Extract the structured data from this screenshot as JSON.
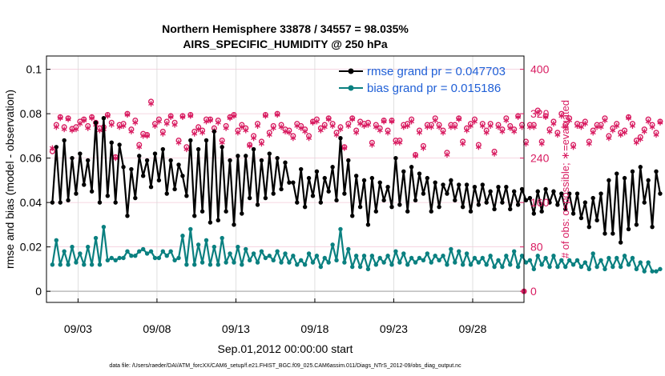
{
  "colors": {
    "rmse": "#000000",
    "bias": "#0a8080",
    "obs": "#d81b60",
    "grid": "#d8d8d8",
    "zero": "#bbbbbb",
    "legend_text": "#1f5fd6"
  },
  "chart_data": {
    "type": "line",
    "title_line1": "Northern Hemisphere 33878 / 34557 = 98.035%",
    "title_line2": "AIRS_SPECIFIC_HUMIDITY @ 250 hPa",
    "xlabel": "Sep.01,2012 00:00:00 start",
    "ylabel": "rmse and bias (model - observation)",
    "y2label": "# of obs: o=possible; ∗=evaluated",
    "footnote": "data file: /Users/raeder/DAI/ATM_forcXX/CAM6_setup/f.e21.FHIST_BGC.f09_025.CAM6assim.011/Diags_NTrS_2012-09/obs_diag_output.nc",
    "xlim": [
      1.0,
      31.25
    ],
    "ylim": [
      -0.005,
      0.106
    ],
    "y2lim": [
      -20,
      424
    ],
    "x_ticks": [
      3,
      8,
      13,
      18,
      23,
      28
    ],
    "x_tick_labels": [
      "09/03",
      "09/08",
      "09/13",
      "09/18",
      "09/23",
      "09/28"
    ],
    "y_ticks": [
      0,
      0.02,
      0.04,
      0.06,
      0.08,
      0.1
    ],
    "y_tick_labels": [
      "0",
      "0.02",
      "0.04",
      "0.06",
      "0.08",
      "0.1"
    ],
    "y2_ticks": [
      0,
      80,
      160,
      240,
      320,
      400
    ],
    "y2_tick_labels": [
      "0",
      "80",
      "160",
      "240",
      "320",
      "400"
    ],
    "legend": [
      "rmse grand pr = 0.047703",
      "bias grand pr = 0.015186"
    ],
    "x_start": 1.375,
    "x_step": 0.25,
    "series": [
      {
        "name": "rmse",
        "values": [
          0.04,
          0.065,
          0.04,
          0.068,
          0.041,
          0.06,
          0.044,
          0.062,
          0.048,
          0.059,
          0.045,
          0.076,
          0.04,
          0.078,
          0.043,
          0.067,
          0.04,
          0.066,
          0.056,
          0.034,
          0.055,
          0.042,
          0.061,
          0.052,
          0.059,
          0.047,
          0.062,
          0.05,
          0.064,
          0.044,
          0.059,
          0.046,
          0.057,
          0.052,
          0.043,
          0.068,
          0.034,
          0.064,
          0.036,
          0.068,
          0.031,
          0.072,
          0.032,
          0.065,
          0.036,
          0.059,
          0.03,
          0.061,
          0.035,
          0.061,
          0.042,
          0.064,
          0.039,
          0.059,
          0.042,
          0.062,
          0.044,
          0.06,
          0.046,
          0.058,
          0.049,
          0.049,
          0.04,
          0.055,
          0.038,
          0.051,
          0.043,
          0.054,
          0.04,
          0.051,
          0.045,
          0.056,
          0.041,
          0.069,
          0.044,
          0.059,
          0.034,
          0.052,
          0.038,
          0.05,
          0.03,
          0.051,
          0.036,
          0.049,
          0.041,
          0.047,
          0.038,
          0.06,
          0.039,
          0.054,
          0.036,
          0.056,
          0.041,
          0.053,
          0.044,
          0.051,
          0.036,
          0.049,
          0.038,
          0.048,
          0.044,
          0.05,
          0.041,
          0.048,
          0.038,
          0.048,
          0.036,
          0.047,
          0.039,
          0.048,
          0.04,
          0.045,
          0.037,
          0.047,
          0.04,
          0.047,
          0.037,
          0.045,
          0.039,
          0.046,
          0.041,
          0.042,
          0.035,
          0.045,
          0.036,
          0.046,
          0.04,
          0.045,
          0.039,
          0.044,
          0.037,
          0.044,
          0.035,
          0.044,
          0.033,
          0.04,
          0.029,
          0.042,
          0.032,
          0.044,
          0.026,
          0.05,
          0.026,
          0.053,
          0.022,
          0.051,
          0.028,
          0.054,
          0.03,
          0.056,
          0.04,
          0.05,
          0.029,
          0.054,
          0.044
        ]
      },
      {
        "name": "bias",
        "values": [
          0.012,
          0.023,
          0.012,
          0.018,
          0.012,
          0.02,
          0.013,
          0.017,
          0.012,
          0.02,
          0.012,
          0.024,
          0.012,
          0.029,
          0.014,
          0.015,
          0.014,
          0.015,
          0.015,
          0.018,
          0.016,
          0.016,
          0.018,
          0.019,
          0.017,
          0.018,
          0.015,
          0.015,
          0.018,
          0.016,
          0.018,
          0.014,
          0.015,
          0.025,
          0.012,
          0.028,
          0.012,
          0.021,
          0.013,
          0.023,
          0.012,
          0.02,
          0.012,
          0.024,
          0.013,
          0.017,
          0.013,
          0.02,
          0.012,
          0.019,
          0.014,
          0.017,
          0.013,
          0.018,
          0.015,
          0.016,
          0.014,
          0.018,
          0.013,
          0.017,
          0.013,
          0.016,
          0.012,
          0.014,
          0.012,
          0.017,
          0.013,
          0.016,
          0.011,
          0.015,
          0.013,
          0.021,
          0.014,
          0.028,
          0.013,
          0.019,
          0.011,
          0.016,
          0.011,
          0.016,
          0.01,
          0.016,
          0.012,
          0.015,
          0.013,
          0.016,
          0.012,
          0.018,
          0.013,
          0.017,
          0.012,
          0.015,
          0.013,
          0.015,
          0.014,
          0.017,
          0.013,
          0.016,
          0.014,
          0.016,
          0.012,
          0.019,
          0.013,
          0.018,
          0.012,
          0.017,
          0.012,
          0.015,
          0.013,
          0.015,
          0.012,
          0.016,
          0.011,
          0.014,
          0.011,
          0.016,
          0.012,
          0.018,
          0.011,
          0.016,
          0.013,
          0.014,
          0.01,
          0.016,
          0.012,
          0.015,
          0.011,
          0.016,
          0.011,
          0.014,
          0.011,
          0.014,
          0.012,
          0.014,
          0.011,
          0.013,
          0.01,
          0.017,
          0.011,
          0.014,
          0.01,
          0.015,
          0.011,
          0.015,
          0.011,
          0.016,
          0.012,
          0.015,
          0.01,
          0.013,
          0.009,
          0.013,
          0.009,
          0.009,
          0.01
        ]
      },
      {
        "name": "obs_possible",
        "values": [
          252,
          300,
          314,
          296,
          312,
          293,
          296,
          306,
          310,
          298,
          314,
          304,
          294,
          296,
          318,
          304,
          242,
          300,
          302,
          320,
          292,
          308,
          264,
          284,
          282,
          342,
          302,
          310,
          288,
          306,
          316,
          304,
          272,
          316,
          260,
          318,
          288,
          296,
          290,
          310,
          310,
          294,
          308,
          272,
          298,
          314,
          318,
          290,
          300,
          294,
          264,
          280,
          302,
          270,
          318,
          286,
          298,
          320,
          300,
          292,
          290,
          280,
          302,
          298,
          292,
          280,
          306,
          310,
          294,
          300,
          312,
          302,
          286,
          296,
          260,
          302,
          312,
          290,
          306,
          302,
          304,
          268,
          300,
          294,
          308,
          290,
          308,
          272,
          272,
          300,
          302,
          310,
          246,
          290,
          262,
          300,
          300,
          312,
          300,
          290,
          250,
          300,
          300,
          312,
          270,
          294,
          302,
          310,
          264,
          302,
          290,
          302,
          252,
          300,
          292,
          312,
          298,
          292,
          316,
          300,
          270,
          300,
          300,
          326,
          270,
          316,
          292,
          306,
          286,
          320,
          300,
          312,
          264,
          302,
          300,
          306,
          270,
          290,
          300,
          300,
          312,
          280,
          294,
          302,
          286,
          290,
          314,
          302,
          272,
          278,
          292,
          310,
          300,
          286,
          306
        ]
      },
      {
        "name": "obs_evaluated",
        "values": [
          258,
          296,
          312,
          292,
          310,
          290,
          292,
          302,
          308,
          294,
          312,
          300,
          290,
          292,
          316,
          300,
          240,
          296,
          298,
          318,
          288,
          304,
          260,
          280,
          280,
          338,
          298,
          306,
          284,
          302,
          314,
          300,
          268,
          314,
          256,
          316,
          284,
          292,
          286,
          306,
          308,
          290,
          304,
          268,
          294,
          312,
          316,
          286,
          296,
          290,
          262,
          276,
          298,
          266,
          316,
          282,
          294,
          318,
          296,
          288,
          286,
          276,
          298,
          294,
          288,
          276,
          304,
          306,
          290,
          296,
          310,
          298,
          282,
          292,
          258,
          298,
          310,
          286,
          302,
          298,
          300,
          264,
          296,
          290,
          306,
          286,
          306,
          268,
          268,
          296,
          298,
          306,
          244,
          286,
          258,
          296,
          296,
          308,
          296,
          286,
          246,
          296,
          296,
          310,
          266,
          290,
          298,
          306,
          260,
          298,
          286,
          298,
          248,
          296,
          288,
          308,
          294,
          288,
          314,
          296,
          266,
          296,
          296,
          322,
          266,
          314,
          288,
          302,
          282,
          316,
          296,
          308,
          260,
          298,
          296,
          302,
          266,
          286,
          296,
          296,
          308,
          276,
          290,
          298,
          282,
          286,
          312,
          298,
          268,
          274,
          288,
          306,
          296,
          282,
          304
        ]
      }
    ]
  }
}
